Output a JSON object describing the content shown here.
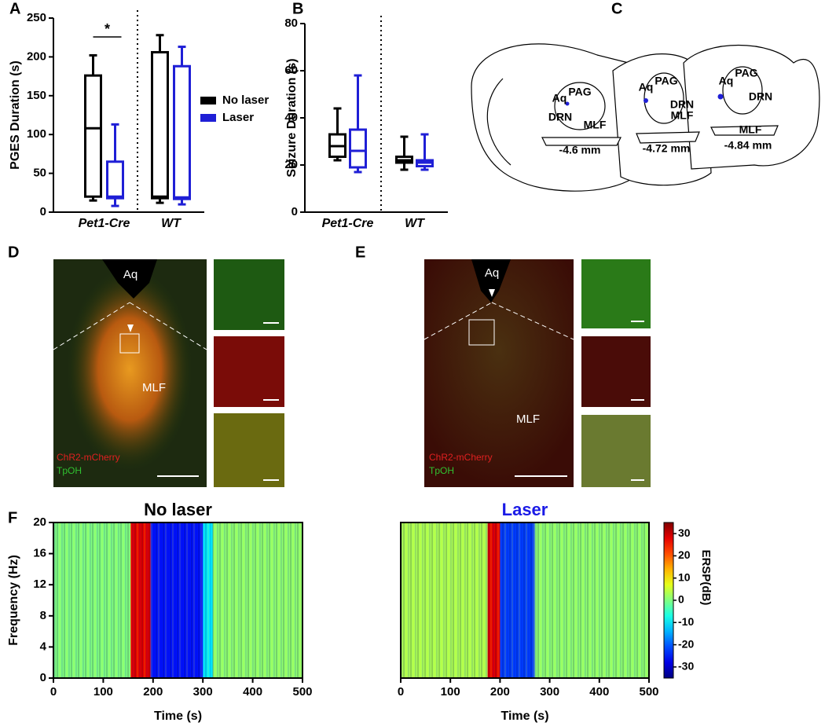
{
  "panel_labels": [
    "A",
    "B",
    "C",
    "D",
    "E",
    "F"
  ],
  "chart_data": [
    {
      "type": "box",
      "ylabel": "PGES  Duration (s)",
      "categories": [
        "Pet1-Cre",
        "WT"
      ],
      "ylim": [
        0,
        250
      ],
      "yticks": [
        0,
        50,
        100,
        150,
        200,
        250
      ],
      "annotation": "*",
      "series": [
        {
          "name": "No laser",
          "color": "#000000",
          "min": [
            15,
            12
          ],
          "q1": [
            20,
            18
          ],
          "median": [
            108,
            20
          ],
          "q3": [
            176,
            206
          ],
          "max": [
            202,
            228
          ]
        },
        {
          "name": "Laser",
          "color": "#1f1fd6",
          "min": [
            8,
            10
          ],
          "q1": [
            18,
            17
          ],
          "median": [
            20,
            19
          ],
          "q3": [
            65,
            188
          ],
          "max": [
            113,
            213
          ]
        }
      ]
    },
    {
      "type": "box",
      "ylabel": "Seizure  Duration (s)",
      "categories": [
        "Pet1-Cre",
        "WT"
      ],
      "ylim": [
        0,
        80
      ],
      "yticks": [
        0,
        20,
        40,
        60,
        80
      ],
      "series": [
        {
          "color": "#000000",
          "min": [
            22,
            18
          ],
          "q1": [
            23.5,
            21
          ],
          "median": [
            28,
            22
          ],
          "q3": [
            33,
            23.5
          ],
          "max": [
            44,
            32
          ]
        },
        {
          "color": "#1f1fd6",
          "min": [
            17,
            18
          ],
          "q1": [
            19,
            19.5
          ],
          "median": [
            26,
            21
          ],
          "q3": [
            35,
            22
          ],
          "max": [
            58,
            33
          ]
        }
      ]
    },
    {
      "type": "heatmap",
      "title": "No laser",
      "title_color": "#000000",
      "xlabel": "Time (s)",
      "ylabel": "Frequency (Hz)",
      "xlim": [
        0,
        500
      ],
      "xticks": [
        0,
        100,
        200,
        300,
        400,
        500
      ],
      "ylim": [
        0,
        20
      ],
      "yticks": [
        0,
        4,
        8,
        12,
        16,
        20
      ],
      "clim": [
        -35,
        35
      ],
      "segments": {
        "x0": [
          0,
          155,
          195,
          300,
          320
        ],
        "x1": [
          155,
          195,
          300,
          320,
          500
        ],
        "values": [
          0,
          28,
          -25,
          -10,
          1
        ]
      }
    },
    {
      "type": "heatmap",
      "title": "Laser",
      "title_color": "#1a1ae6",
      "xlabel": "Time (s)",
      "xlim": [
        0,
        500
      ],
      "xticks": [
        0,
        100,
        200,
        300,
        400,
        500
      ],
      "ylim": [
        0,
        20
      ],
      "clim": [
        -35,
        35
      ],
      "clabel": "ERSP(dB)",
      "cticks": [
        30,
        20,
        10,
        0,
        -10,
        -20,
        -30
      ],
      "segments": {
        "x0": [
          0,
          175,
          200,
          270
        ],
        "x1": [
          175,
          200,
          270,
          500
        ],
        "values": [
          3,
          28,
          -22,
          1
        ]
      }
    }
  ],
  "diagram": {
    "sections": [
      {
        "depth": "-4.6 mm",
        "labels": [
          "PAG",
          "Aq",
          "DRN",
          "MLF"
        ]
      },
      {
        "depth": "-4.72 mm",
        "labels": [
          "PAG",
          "Aq",
          "DRN",
          "MLF"
        ]
      },
      {
        "depth": "-4.84 mm",
        "labels": [
          "PAG",
          "Aq",
          "DRN",
          "MLF"
        ]
      }
    ]
  },
  "micrographs": [
    {
      "labels": [
        "Aq",
        "MLF"
      ],
      "stains": [
        "ChR2-mCherry",
        "TpOH"
      ]
    },
    {
      "labels": [
        "Aq",
        "MLF"
      ],
      "stains": [
        "ChR2-mCherry",
        "TpOH"
      ]
    }
  ]
}
